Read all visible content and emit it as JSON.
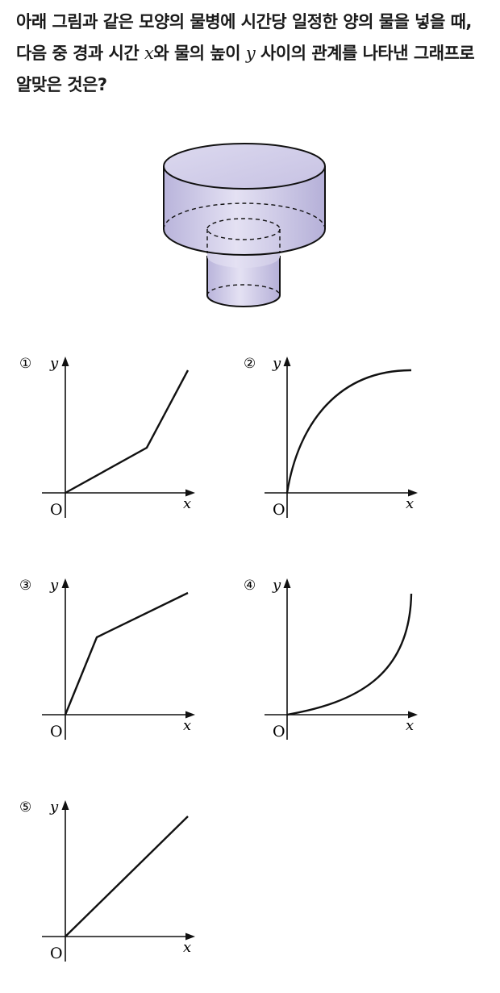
{
  "question": {
    "part1": "아래 그림과 같은 모양의 물병에 시간당 일정한 양의 물을 넣을 때, 다음 중 경과 시간 ",
    "x_var": "x",
    "part2": "와 물의 높이 ",
    "y_var": "y",
    "part3": " 사이의 관계를 나타낸 그래프로 알맞은 것은?"
  },
  "figure": {
    "description_icon": "two-stacked-cylinders-bottle",
    "fill_color": "#cfcbe6"
  },
  "options": [
    {
      "number": "①",
      "y_label": "y",
      "x_label": "x",
      "origin": "O"
    },
    {
      "number": "②",
      "y_label": "y",
      "x_label": "x",
      "origin": "O"
    },
    {
      "number": "③",
      "y_label": "y",
      "x_label": "x",
      "origin": "O"
    },
    {
      "number": "④",
      "y_label": "y",
      "x_label": "x",
      "origin": "O"
    },
    {
      "number": "⑤",
      "y_label": "y",
      "x_label": "x",
      "origin": "O"
    }
  ]
}
